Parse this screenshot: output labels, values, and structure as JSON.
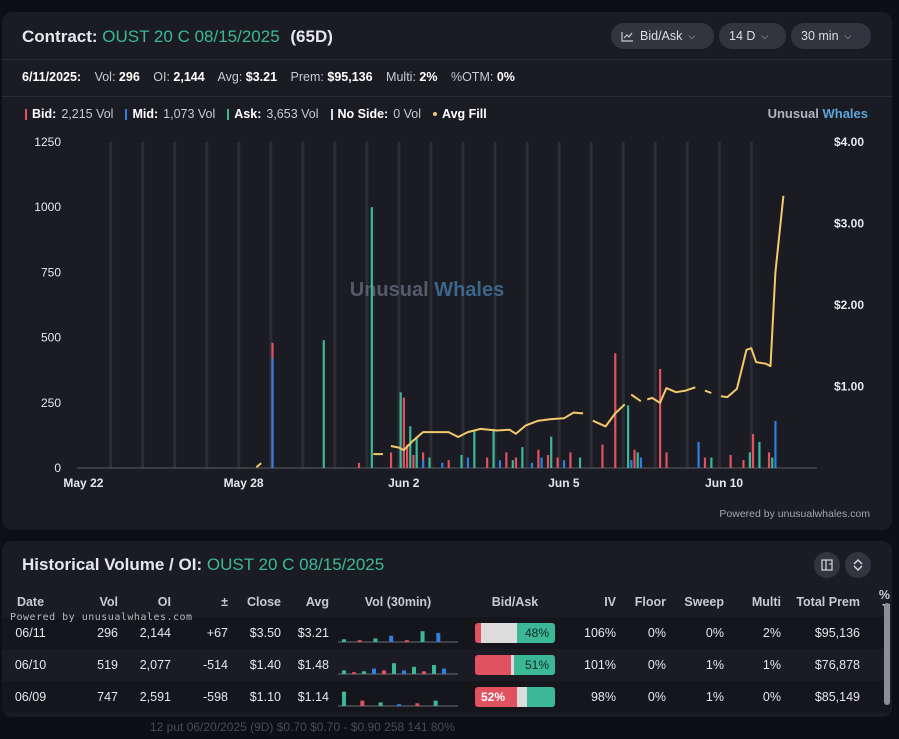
{
  "header": {
    "label": "Contract:",
    "contract": "OUST 20 C 08/15/2025",
    "dte": "(65D)",
    "dropdowns": [
      {
        "label": "Bid/Ask",
        "icon": "line-chart-icon"
      },
      {
        "label": "14 D"
      },
      {
        "label": "30 min"
      }
    ]
  },
  "stats": {
    "date": "6/11/2025:",
    "vol_label": "Vol:",
    "vol": "296",
    "oi_label": "OI:",
    "oi": "2,144",
    "avg_label": "Avg:",
    "avg": "$3.21",
    "prem_label": "Prem:",
    "prem": "$95,136",
    "multi_label": "Multi:",
    "multi": "2%",
    "otm_label": "%OTM:",
    "otm": "0%"
  },
  "legend": {
    "bid_label": "Bid:",
    "bid": "2,215 Vol",
    "mid_label": "Mid:",
    "mid": "1,073 Vol",
    "ask_label": "Ask:",
    "ask": "3,653 Vol",
    "noside_label": "No Side:",
    "noside": "0 Vol",
    "avgfill_label": "Avg Fill"
  },
  "brand": {
    "part1": "Unusual",
    "part2": "Whales"
  },
  "watermark": {
    "part1": "Unusual",
    "part2": "Whales"
  },
  "powered": "Powered by unusualwhales.com",
  "colors": {
    "bid": "#e0525f",
    "mid": "#2f7fe0",
    "ask": "#3cb899",
    "noside": "#d9d9d9",
    "avg_fill": "#f2c96b",
    "accent": "#3cb899"
  },
  "chart_data": {
    "type": "bar",
    "y_left": {
      "ylim": [
        0,
        1250
      ],
      "ticks": [
        "1250",
        "1000",
        "750",
        "500",
        "250",
        "0"
      ]
    },
    "y_right": {
      "ylim": [
        0,
        4.0
      ],
      "ticks": [
        "$4.00",
        "$3.00",
        "$2.00",
        "$1.00"
      ]
    },
    "x_ticks": [
      {
        "label": "May 22",
        "t": 0.0
      },
      {
        "label": "May 28",
        "t": 5.0
      },
      {
        "label": "Jun 2",
        "t": 10.0
      },
      {
        "label": "Jun 5",
        "t": 15.0
      },
      {
        "label": "Jun 10",
        "t": 20.0
      }
    ],
    "series": [
      {
        "name": "Bid",
        "bars": [
          [
            5.9,
            480
          ],
          [
            8.6,
            20
          ],
          [
            9.6,
            60
          ],
          [
            10.0,
            270
          ],
          [
            10.1,
            90
          ],
          [
            10.3,
            50
          ],
          [
            10.6,
            60
          ],
          [
            11.4,
            30
          ],
          [
            12.6,
            40
          ],
          [
            13.2,
            60
          ],
          [
            13.5,
            40
          ],
          [
            14.2,
            70
          ],
          [
            14.5,
            50
          ],
          [
            14.8,
            40
          ],
          [
            15.2,
            60
          ],
          [
            16.2,
            90
          ],
          [
            16.6,
            440
          ],
          [
            17.2,
            70
          ],
          [
            18.0,
            380
          ],
          [
            18.2,
            60
          ],
          [
            19.4,
            40
          ],
          [
            20.2,
            50
          ],
          [
            20.6,
            30
          ],
          [
            20.9,
            130
          ],
          [
            21.4,
            60
          ]
        ]
      },
      {
        "name": "Mid",
        "bars": [
          [
            5.9,
            420
          ],
          [
            9.9,
            30
          ],
          [
            10.4,
            50
          ],
          [
            10.6,
            30
          ],
          [
            11.2,
            20
          ],
          [
            12.0,
            40
          ],
          [
            13.0,
            30
          ],
          [
            14.0,
            20
          ],
          [
            14.3,
            40
          ],
          [
            15.0,
            30
          ],
          [
            17.1,
            30
          ],
          [
            17.4,
            40
          ],
          [
            19.2,
            100
          ],
          [
            21.6,
            180
          ]
        ]
      },
      {
        "name": "Ask",
        "bars": [
          [
            7.5,
            490
          ],
          [
            9.0,
            1000
          ],
          [
            9.9,
            290
          ],
          [
            10.2,
            160
          ],
          [
            10.4,
            120
          ],
          [
            10.8,
            40
          ],
          [
            11.8,
            50
          ],
          [
            12.2,
            140
          ],
          [
            12.8,
            150
          ],
          [
            13.4,
            30
          ],
          [
            13.7,
            80
          ],
          [
            14.6,
            120
          ],
          [
            15.5,
            40
          ],
          [
            17.0,
            240
          ],
          [
            17.3,
            60
          ],
          [
            19.6,
            40
          ],
          [
            20.8,
            60
          ],
          [
            21.1,
            100
          ],
          [
            21.5,
            40
          ]
        ]
      }
    ],
    "avg_fill": [
      [
        5.4,
        0.01
      ],
      [
        5.55,
        0.06
      ],
      [
        9.05,
        0.17
      ],
      [
        9.35,
        0.17
      ],
      [
        9.6,
        0.27
      ],
      [
        9.85,
        0.25
      ],
      [
        10.0,
        0.22
      ],
      [
        10.25,
        0.32
      ],
      [
        10.6,
        0.44
      ],
      [
        11.0,
        0.44
      ],
      [
        11.4,
        0.44
      ],
      [
        11.7,
        0.38
      ],
      [
        12.0,
        0.44
      ],
      [
        12.4,
        0.48
      ],
      [
        12.9,
        0.46
      ],
      [
        13.3,
        0.47
      ],
      [
        13.5,
        0.42
      ],
      [
        13.8,
        0.52
      ],
      [
        14.2,
        0.58
      ],
      [
        14.6,
        0.6
      ],
      [
        15.0,
        0.61
      ],
      [
        15.3,
        0.68
      ],
      [
        15.6,
        0.67
      ],
      [
        15.9,
        0.58
      ],
      [
        16.3,
        0.51
      ],
      [
        16.6,
        0.67
      ],
      [
        16.9,
        0.78
      ],
      [
        17.1,
        0.9
      ],
      [
        17.4,
        0.82
      ],
      [
        17.6,
        0.84
      ],
      [
        17.75,
        0.86
      ],
      [
        18.0,
        0.8
      ],
      [
        18.2,
        0.98
      ],
      [
        18.5,
        0.93
      ],
      [
        18.8,
        0.95
      ],
      [
        19.1,
        0.99
      ],
      [
        19.4,
        0.95
      ],
      [
        19.6,
        0.92
      ],
      [
        19.9,
        0.88
      ],
      [
        20.1,
        0.87
      ],
      [
        20.4,
        0.97
      ],
      [
        20.7,
        1.45
      ],
      [
        20.85,
        1.47
      ],
      [
        21.0,
        1.3
      ],
      [
        21.3,
        1.28
      ],
      [
        21.45,
        1.25
      ],
      [
        21.6,
        2.4
      ],
      [
        21.85,
        3.34
      ]
    ],
    "avg_fill_breaks_after": [
      1,
      3,
      22,
      26,
      28,
      35,
      37
    ]
  },
  "history": {
    "title_label": "Historical Volume / OI:",
    "contract": "OUST 20 C 08/15/2025",
    "powered": "Powered by unusualwhales.com",
    "columns": [
      "Date",
      "Vol",
      "OI",
      "±",
      "Close",
      "Avg",
      "Vol (30min)",
      "Bid/Ask",
      "IV",
      "Floor",
      "Sweep",
      "Multi",
      "Total Prem",
      "% T"
    ],
    "rows": [
      {
        "date": "06/11",
        "vol": "296",
        "oi": "2,144",
        "chg": "+67",
        "chg_sign": "pos",
        "close": "$3.50",
        "avg": "$3.21",
        "bid": 0.07,
        "mid": 0.45,
        "ask": 0.48,
        "ba_label": "48%",
        "ba_side": "ask",
        "iv": "106%",
        "floor": "0%",
        "sweep": "0%",
        "multi": "2%",
        "prem": "$95,136",
        "spark": [
          0.15,
          0.1,
          0.2,
          0.35,
          0.1,
          0.6,
          0.5
        ]
      },
      {
        "date": "06/10",
        "vol": "519",
        "oi": "2,077",
        "chg": "-514",
        "chg_sign": "neg",
        "close": "$1.40",
        "avg": "$1.48",
        "bid": 0.45,
        "mid": 0.04,
        "ask": 0.51,
        "ba_label": "51%",
        "ba_side": "ask",
        "iv": "101%",
        "floor": "0%",
        "sweep": "1%",
        "multi": "1%",
        "prem": "$76,878",
        "spark": [
          0.2,
          0.1,
          0.15,
          0.3,
          0.2,
          0.6,
          0.2,
          0.4,
          0.15,
          0.5,
          0.3
        ]
      },
      {
        "date": "06/09",
        "vol": "747",
        "oi": "2,591",
        "chg": "-598",
        "chg_sign": "neg",
        "close": "$1.10",
        "avg": "$1.14",
        "bid": 0.52,
        "mid": 0.13,
        "ask": 0.35,
        "ba_label": "52%",
        "ba_side": "bid",
        "iv": "98%",
        "floor": "0%",
        "sweep": "1%",
        "multi": "0%",
        "prem": "$85,149",
        "spark": [
          0.8,
          0.3,
          0.2,
          0.1,
          0.15,
          0.3
        ]
      }
    ]
  },
  "background_row": {
    "text": "12  put  06/20/2025    (9D)    $0.70   $0.70 - $0.90    258    141    80%"
  }
}
